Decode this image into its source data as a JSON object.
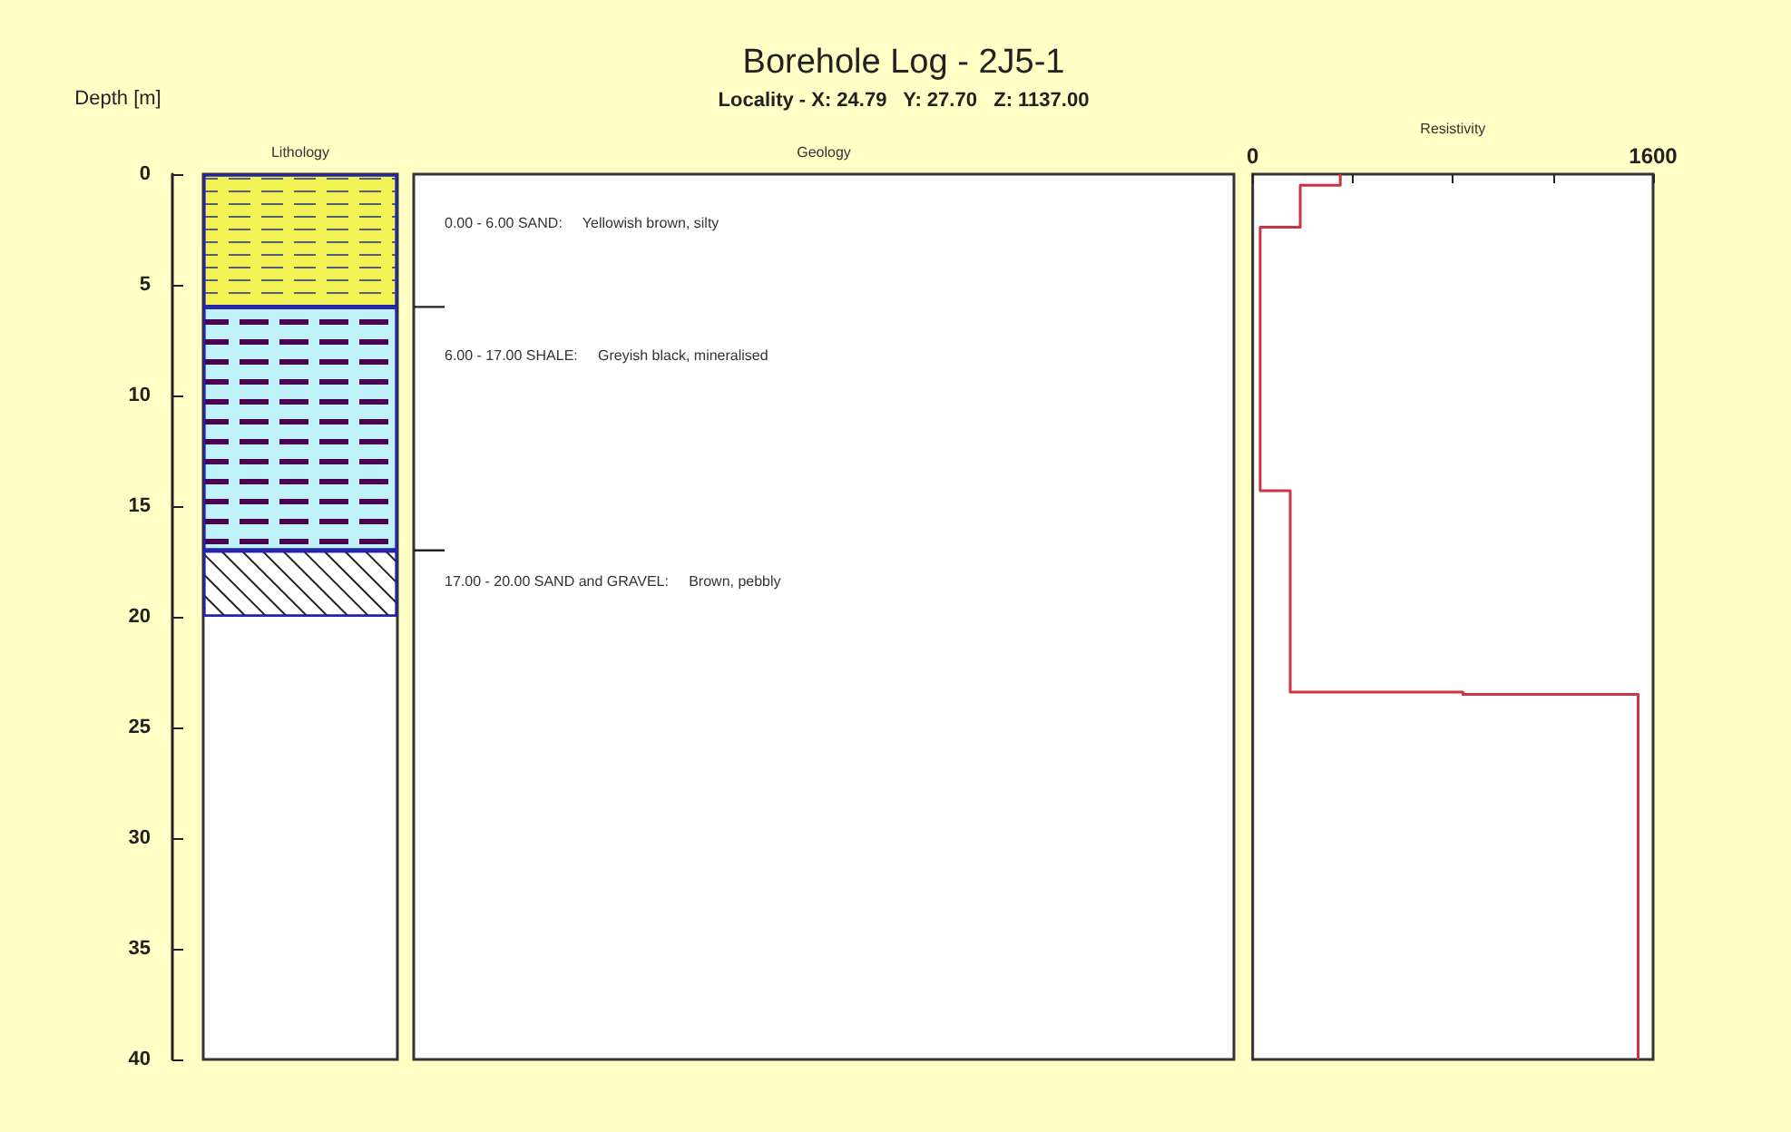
{
  "chart_data": [
    {
      "type": "bar",
      "stacked": true,
      "xlabel": "Lithology",
      "ylabel": "Depth [m]",
      "categories": [
        null
      ],
      "series": [
        {
          "color": "#f2f255",
          "values": [
            6
          ]
        },
        {
          "color": "#bff2f8",
          "values": [
            11
          ]
        },
        {
          "color": "#ffffff",
          "values": [
            3
          ]
        }
      ],
      "ylim": [
        40,
        0
      ],
      "yticks": [
        0,
        5,
        10,
        15,
        20,
        25,
        30,
        35,
        40
      ],
      "tick_labels": "y"
    },
    {
      "type": "other",
      "title": "Borehole Log - 2J5-1",
      "subtitle": "Locality - X: 24.79   Y: 27.70   Z: 1137.00",
      "xlabel": "Geology",
      "annotations": [
        "0.00 - 6.00 SAND:     Yellowish brown, silty",
        "6.00 - 17.00 SHALE:     Greyish black, mineralised",
        "17.00 - 20.00 SAND and GRAVEL:     Brown, pebbly"
      ]
    },
    {
      "type": "line",
      "xlabel": "Resistivity",
      "xlim": [
        0,
        1600
      ],
      "xticks": [
        0,
        {
          "value": 400,
          "label": null
        },
        {
          "value": 800,
          "label": null
        },
        {
          "value": 1200,
          "label": null
        },
        1600
      ],
      "ylim": [
        40,
        0
      ],
      "tick_labels": "x",
      "series": [
        {
          "color": "#cc3344",
          "x": [
            350,
            350,
            190,
            190,
            30,
            30,
            150,
            150,
            840,
            840,
            1540,
            1540
          ],
          "values": [
            0,
            0.5,
            0.5,
            2.4,
            2.4,
            14.3,
            14.3,
            23.4,
            23.4,
            23.5,
            23.5,
            40
          ]
        }
      ]
    }
  ]
}
